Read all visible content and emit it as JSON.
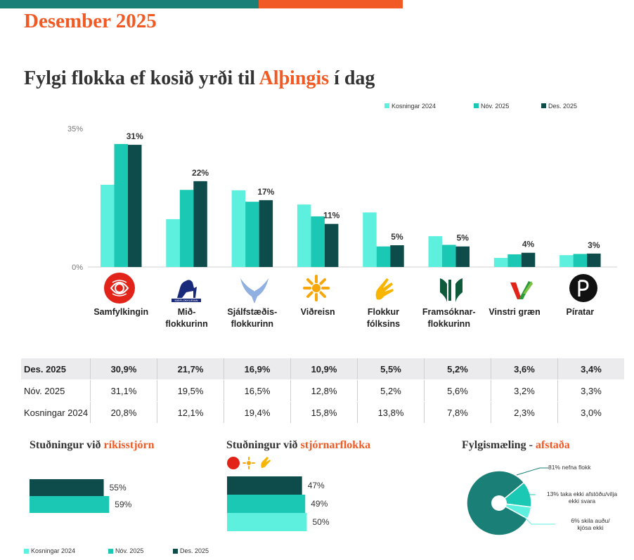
{
  "header": {
    "month": "Desember 2025",
    "title_pre": "Fylgi flokka ef kosið yrði til ",
    "title_hl": "Alþingis",
    "title_post": " í dag"
  },
  "colors": {
    "kosningar": "#5ef0df",
    "nov": "#1ac8b4",
    "des": "#0e4c4c",
    "accent": "#f15a24",
    "teal_bar": "#1a7f77"
  },
  "chart_data": [
    {
      "type": "bar",
      "title": "Fylgi flokka ef kosið yrði til Alþingis í dag",
      "categories": [
        "Samfylkingin",
        "Mið-\nflokkurinn",
        "Sjálfstæðis-\nflokkurinn",
        "Viðreisn",
        "Flokkur\nfólksins",
        "Framsóknar-\nflokkurinn",
        "Vinstri græn",
        "Píratar"
      ],
      "series": [
        {
          "name": "Kosningar 2024",
          "values": [
            20.8,
            12.1,
            19.4,
            15.8,
            13.8,
            7.8,
            2.3,
            3.0
          ]
        },
        {
          "name": "Nóv. 2025",
          "values": [
            31.1,
            19.5,
            16.5,
            12.8,
            5.2,
            5.6,
            3.2,
            3.3
          ]
        },
        {
          "name": "Des. 2025",
          "values": [
            30.9,
            21.7,
            16.9,
            10.9,
            5.5,
            5.2,
            3.6,
            3.4
          ]
        }
      ],
      "data_labels": [
        "31%",
        "22%",
        "17%",
        "11%",
        "5%",
        "5%",
        "4%",
        "3%"
      ],
      "y_ticks": [
        "0%",
        "35%"
      ],
      "ylim": [
        0,
        35
      ],
      "legend": [
        "Kosningar 2024",
        "Nóv. 2025",
        "Des. 2025"
      ],
      "legend_position": "top-right"
    },
    {
      "type": "bar",
      "title": "Stuðningur við ríkisstjórn",
      "orientation": "horizontal",
      "series": [
        {
          "name": "Des. 2025",
          "value": 55,
          "label": "55%"
        },
        {
          "name": "Nóv. 2025",
          "value": 59,
          "label": "59%"
        }
      ]
    },
    {
      "type": "bar",
      "title": "Stuðningur við stjórnarflokka",
      "orientation": "horizontal",
      "series": [
        {
          "name": "Des. 2025",
          "value": 47,
          "label": "47%"
        },
        {
          "name": "Nóv. 2025",
          "value": 49,
          "label": "49%"
        },
        {
          "name": "Kosningar 2024",
          "value": 50,
          "label": "50%"
        }
      ]
    },
    {
      "type": "pie",
      "title": "Fylgismæling - afstaða",
      "slices": [
        {
          "label": "81% nefna flokk",
          "value": 81
        },
        {
          "label": "13% taka ekki afstöðu/vilja ekki svara",
          "value": 13
        },
        {
          "label": "6% skila auðu/ kjósa ekki",
          "value": 6
        }
      ]
    }
  ],
  "table": {
    "rows": [
      {
        "label": "Des. 2025",
        "bold": true,
        "values": [
          "30,9%",
          "21,7%",
          "16,9%",
          "10,9%",
          "5,5%",
          "5,2%",
          "3,6%",
          "3,4%"
        ]
      },
      {
        "label": "Nóv. 2025",
        "bold": false,
        "values": [
          "31,1%",
          "19,5%",
          "16,5%",
          "12,8%",
          "5,2%",
          "5,6%",
          "3,2%",
          "3,3%"
        ]
      },
      {
        "label": "Kosningar 2024",
        "bold": false,
        "values": [
          "20,8%",
          "12,1%",
          "19,4%",
          "15,8%",
          "13,8%",
          "7,8%",
          "2,3%",
          "3,0%"
        ]
      }
    ]
  },
  "sections": {
    "gov_pre": "Stuðningur við ",
    "gov_hl": "ríkisstjórn",
    "parties_pre": "Stuðningur við ",
    "parties_hl": "stjórnarflokka",
    "pie_pre": "Fylgismæling - ",
    "pie_hl": "afstaða"
  },
  "pie_labels": {
    "a": "81% nefna flokk",
    "b1": "13% taka ekki afstöðu/vilja",
    "b2": "ekki svara",
    "c1": "6% skila auðu/",
    "c2": "kjósa  ekki"
  },
  "bottom_legend": [
    "Kosningar 2024",
    "Nóv. 2025",
    "Des. 2025"
  ],
  "logo_text": {
    "midflokkurinn": "MIÐFLOKKURINN"
  }
}
